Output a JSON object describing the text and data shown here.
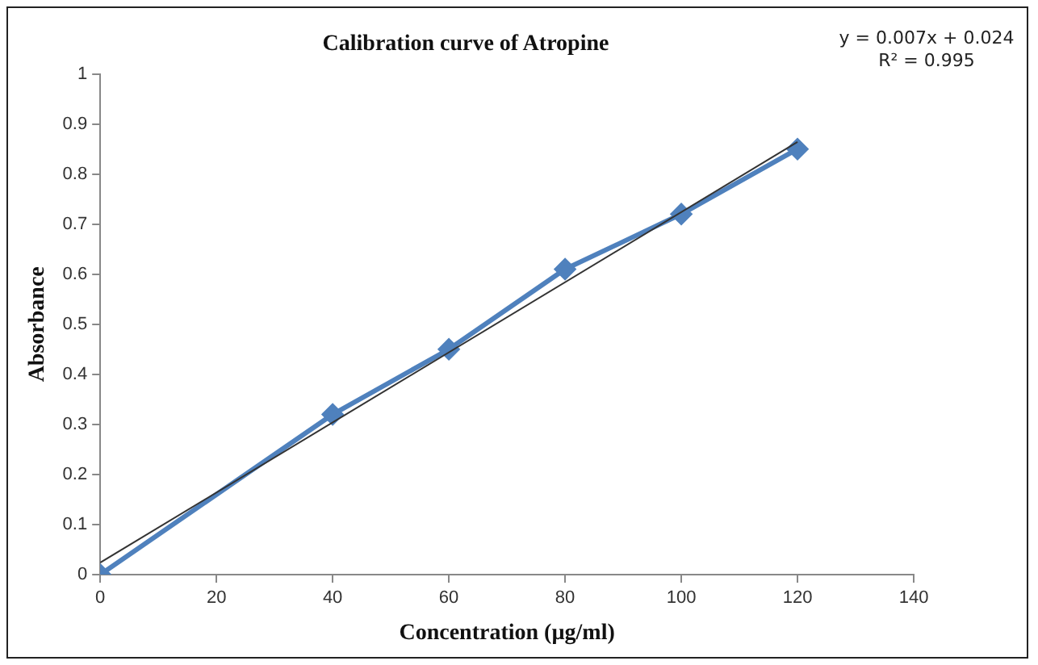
{
  "chart_data": {
    "type": "line",
    "title": "Calibration curve of Atropine",
    "xlabel": "Concentration (µg/ml)",
    "ylabel": "Absorbance",
    "x": [
      0,
      40,
      60,
      80,
      100,
      120
    ],
    "series": [
      {
        "color": "#4f81bd",
        "values": [
          0,
          0.32,
          0.45,
          0.61,
          0.72,
          0.85
        ],
        "marker": "diamond"
      },
      {
        "type": "line",
        "color": "#333333",
        "x": [
          0,
          120
        ],
        "values": [
          0.024,
          0.864
        ],
        "marker": "none"
      }
    ],
    "xlim": [
      0,
      140
    ],
    "xticks": [
      0,
      20,
      40,
      60,
      80,
      100,
      120,
      140
    ],
    "ylim": [
      0,
      1
    ],
    "yticks": [
      0,
      0.1,
      0.2,
      0.3,
      0.4,
      0.5,
      0.6,
      0.7,
      0.8,
      0.9,
      1
    ],
    "grid": false,
    "legend": false,
    "annotations": [
      "y = 0.007x + 0.024",
      "R² = 0.995"
    ]
  }
}
